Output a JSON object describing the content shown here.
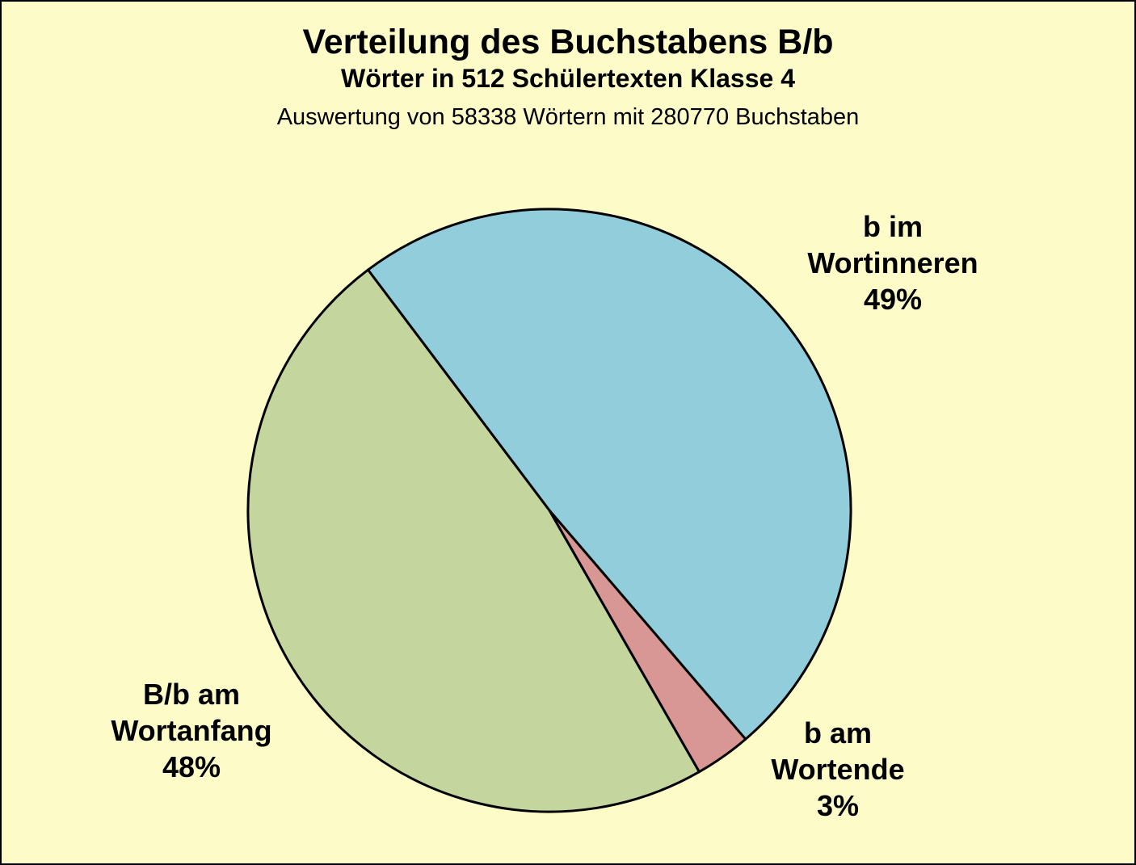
{
  "page": {
    "background_color": "#FDFBC8",
    "frame_color": "#000000"
  },
  "header": {
    "title": "Verteilung des Buchstabens B/b",
    "subtitle": "Wörter in 512 Schülertexten Klasse 4",
    "note": "Auswertung von 58338 Wörtern mit 280770 Buchstaben"
  },
  "chart_data": {
    "type": "pie",
    "title": "Verteilung des Buchstabens B/b",
    "subtitle": "Wörter in 512 Schülertexten Klasse 4",
    "note": "Auswertung von 58338 Wörtern mit 280770 Buchstaben",
    "direction": "clockwise",
    "start_angle_deg_cw_from_top": -37,
    "stroke_color": "#000000",
    "stroke_width": 3,
    "legend_position": "labels-outside-slices",
    "grid": false,
    "slices": [
      {
        "id": "b-im-wortinneren",
        "label": "b im Wortinneren",
        "percent": 49,
        "color": "#92CDDC",
        "label_lines": [
          "b im",
          "Wortinneren",
          "49%"
        ]
      },
      {
        "id": "b-am-wortende",
        "label": "b am Wortende",
        "percent": 3,
        "color": "#D89695",
        "label_lines": [
          "b am",
          "Wortende",
          "3%"
        ]
      },
      {
        "id": "b-am-wortanfang",
        "label": "B/b am Wortanfang",
        "percent": 48,
        "color": "#C4D69D",
        "label_lines": [
          "B/b am",
          "Wortanfang",
          "48%"
        ]
      }
    ]
  }
}
